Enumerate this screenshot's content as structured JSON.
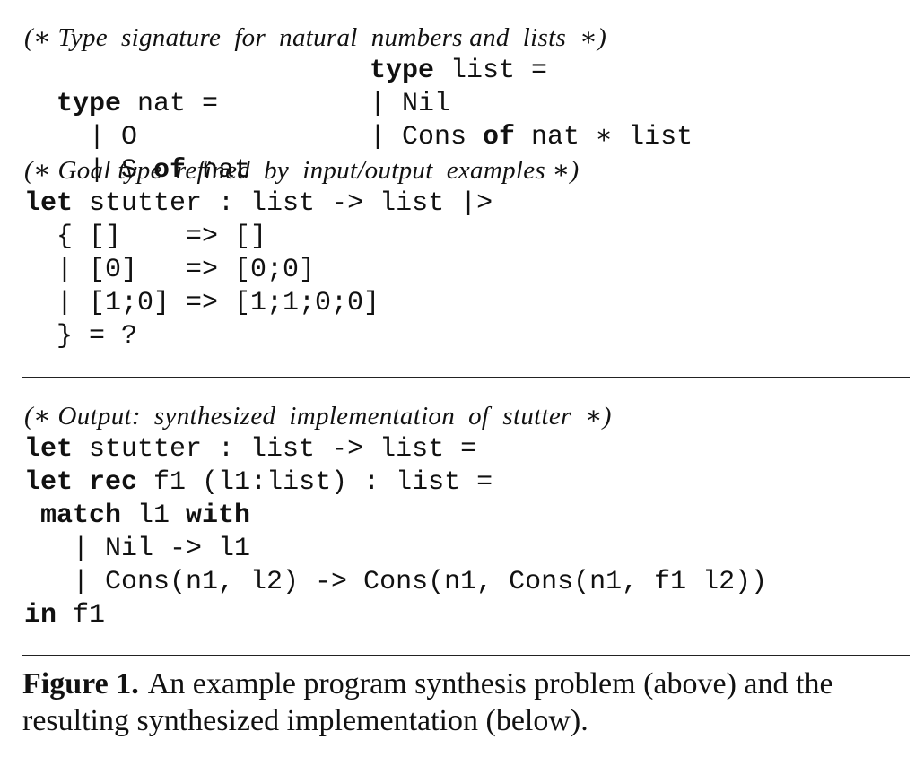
{
  "problem": {
    "comment_types": "(∗ Type  signature  for  natural  numbers and  lists  ∗)",
    "nat_decl": {
      "kw": "type",
      "rest": " nat ="
    },
    "list_decl": {
      "kw": "type",
      "rest": " list ="
    },
    "nat_case_o": "  | O",
    "list_case_nil": "| Nil",
    "nat_case_s": {
      "pre": "  | S ",
      "kw": "of",
      "post": " nat"
    },
    "list_case_cons": {
      "pre": "| Cons ",
      "kw": "of",
      "post": " nat ∗ list"
    },
    "comment_goal": "(∗ Goal type  refined  by  input/output  examples ∗)",
    "goal_line": {
      "kw": "let",
      "rest": " stutter : list -> list |>"
    },
    "examples": [
      "  { []    => []",
      "  | [0]   => [0;0]",
      "  | [1;0] => [1;1;0;0]",
      "  } = ?"
    ]
  },
  "output": {
    "comment": "(∗ Output:  synthesized  implementation  of  stutter  ∗)",
    "line1": {
      "kw": "let",
      "rest": " stutter : list -> list ="
    },
    "line2": {
      "kw1": "let",
      "kw2": "rec",
      "rest": " f1 (l1:list) : list ="
    },
    "line3": {
      "pre": " ",
      "kw1": "match",
      "mid": " l1 ",
      "kw2": "with"
    },
    "line4": "   | Nil -> l1",
    "line5": "   | Cons(n1, l2) -> Cons(n1, Cons(n1, f1 l2))",
    "line6": {
      "kw": "in",
      "rest": " f1"
    }
  },
  "caption": {
    "label": "Figure 1.",
    "text": "An example program synthesis problem (above) and the resulting synthesized implementation (below)."
  }
}
